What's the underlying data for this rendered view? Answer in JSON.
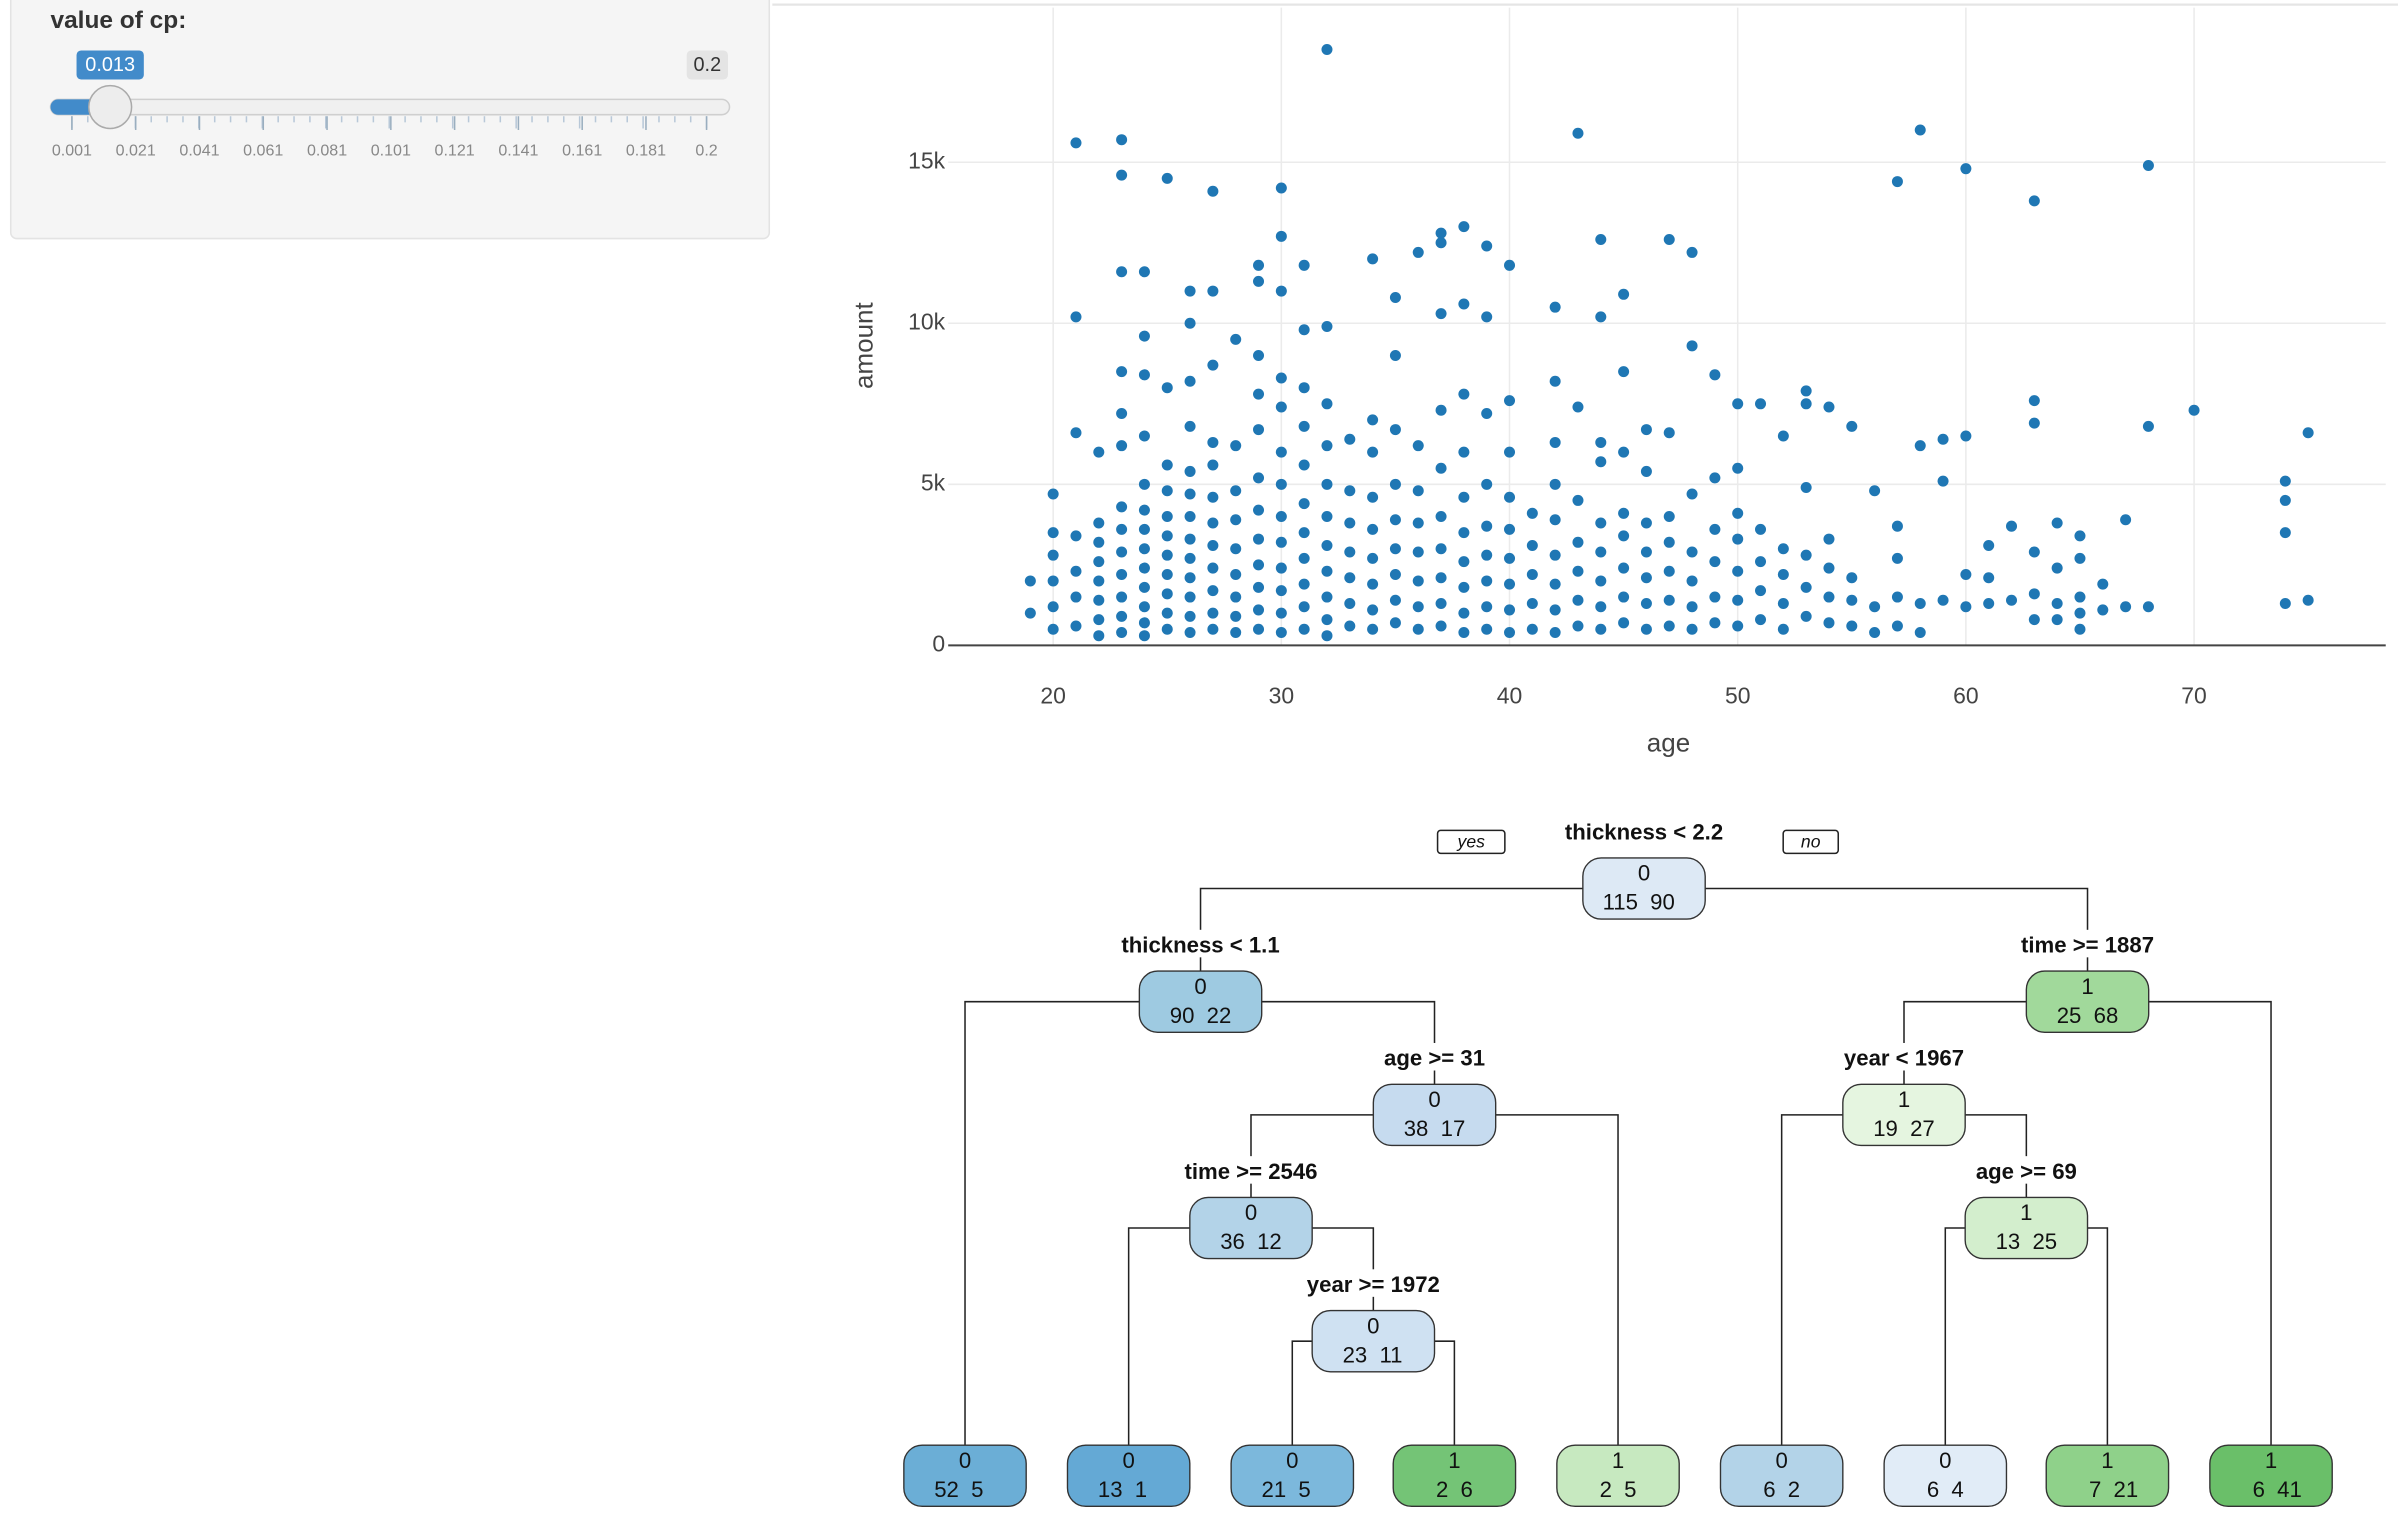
{
  "slider": {
    "label": "value of cp:",
    "value": 0.013,
    "max_badge": 0.2,
    "min": 0.001,
    "max": 0.2,
    "ticks": [
      0.001,
      0.021,
      0.041,
      0.061,
      0.081,
      0.101,
      0.121,
      0.141,
      0.161,
      0.181,
      0.2
    ]
  },
  "chart_data": {
    "type": "scatter",
    "x_label": "age",
    "y_label": "amount",
    "color": "#1f77b4",
    "grid": true,
    "xlim": [
      15.4,
      78.4
    ],
    "ylim": [
      0,
      19800
    ],
    "xticks": [
      20,
      30,
      40,
      50,
      60,
      70
    ],
    "yticks": [
      0,
      {
        "value": 5000,
        "label": "5k"
      },
      {
        "value": 10000,
        "label": "10k"
      },
      {
        "value": 15000,
        "label": "15k"
      }
    ],
    "x": [
      19,
      19,
      20,
      20,
      20,
      20,
      20,
      20,
      21,
      21,
      21,
      21,
      21,
      21,
      21,
      22,
      22,
      22,
      22,
      22,
      22,
      22,
      22,
      23,
      23,
      23,
      23,
      23,
      23,
      23,
      23,
      23,
      23,
      23,
      23,
      23,
      24,
      24,
      24,
      24,
      24,
      24,
      24,
      24,
      24,
      24,
      24,
      24,
      24,
      25,
      25,
      25,
      25,
      25,
      25,
      25,
      25,
      25,
      25,
      25,
      26,
      26,
      26,
      26,
      26,
      26,
      26,
      26,
      26,
      26,
      26,
      26,
      26,
      27,
      27,
      27,
      27,
      27,
      27,
      27,
      27,
      27,
      27,
      27,
      27,
      28,
      28,
      28,
      28,
      28,
      28,
      28,
      28,
      28,
      29,
      29,
      29,
      29,
      29,
      29,
      29,
      29,
      29,
      29,
      29,
      29,
      30,
      30,
      30,
      30,
      30,
      30,
      30,
      30,
      30,
      30,
      30,
      30,
      30,
      31,
      31,
      31,
      31,
      31,
      31,
      31,
      31,
      31,
      31,
      31,
      32,
      32,
      32,
      32,
      32,
      32,
      32,
      32,
      32,
      32,
      32,
      33,
      33,
      33,
      33,
      33,
      33,
      33,
      34,
      34,
      34,
      34,
      34,
      34,
      34,
      34,
      34,
      35,
      35,
      35,
      35,
      35,
      35,
      35,
      35,
      35,
      36,
      36,
      36,
      36,
      36,
      36,
      36,
      36,
      37,
      37,
      37,
      37,
      37,
      37,
      37,
      37,
      37,
      37,
      38,
      38,
      38,
      38,
      38,
      38,
      38,
      38,
      38,
      38,
      39,
      39,
      39,
      39,
      39,
      39,
      39,
      39,
      39,
      40,
      40,
      40,
      40,
      40,
      40,
      40,
      40,
      40,
      41,
      41,
      41,
      41,
      41,
      42,
      42,
      42,
      42,
      42,
      42,
      42,
      42,
      42,
      43,
      43,
      43,
      43,
      43,
      43,
      43,
      44,
      44,
      44,
      44,
      44,
      44,
      44,
      44,
      44,
      45,
      45,
      45,
      45,
      45,
      45,
      45,
      45,
      46,
      46,
      46,
      46,
      46,
      46,
      46,
      47,
      47,
      47,
      47,
      47,
      47,
      47,
      48,
      48,
      48,
      48,
      48,
      48,
      48,
      49,
      49,
      49,
      49,
      49,
      49,
      50,
      50,
      50,
      50,
      50,
      50,
      50,
      51,
      51,
      51,
      51,
      51,
      52,
      52,
      52,
      52,
      52,
      53,
      53,
      53,
      53,
      53,
      53,
      54,
      54,
      54,
      54,
      54,
      55,
      55,
      55,
      55,
      56,
      56,
      56,
      57,
      57,
      57,
      57,
      57,
      58,
      58,
      58,
      58,
      59,
      59,
      59,
      60,
      60,
      60,
      60,
      61,
      61,
      61,
      62,
      62,
      63,
      63,
      63,
      63,
      63,
      63,
      64,
      64,
      64,
      64,
      65,
      65,
      65,
      65,
      65,
      66,
      66,
      67,
      67,
      68,
      68,
      68,
      70,
      74,
      74,
      74,
      74,
      75,
      75
    ],
    "values": [
      1000,
      2000,
      500,
      1200,
      2000,
      2800,
      3500,
      4700,
      600,
      1500,
      2300,
      3400,
      6600,
      10200,
      15600,
      300,
      800,
      1400,
      2000,
      2600,
      3200,
      3800,
      6000,
      400,
      900,
      1500,
      2200,
      2900,
      3600,
      4300,
      6200,
      7200,
      8500,
      11600,
      14600,
      15700,
      300,
      700,
      1200,
      1800,
      2400,
      3000,
      3600,
      4200,
      5000,
      6500,
      8400,
      9600,
      11600,
      500,
      1000,
      1600,
      2200,
      2800,
      3400,
      4000,
      4800,
      5600,
      8000,
      14500,
      400,
      900,
      1500,
      2100,
      2700,
      3300,
      4000,
      4700,
      5400,
      6800,
      8200,
      10000,
      11000,
      500,
      1000,
      1700,
      2400,
      3100,
      3800,
      4600,
      5600,
      6300,
      8700,
      11000,
      14100,
      400,
      900,
      1500,
      2200,
      3000,
      3900,
      4800,
      6200,
      9500,
      500,
      1100,
      1800,
      2500,
      3300,
      4200,
      5200,
      6700,
      7800,
      9000,
      11300,
      11800,
      400,
      1000,
      1700,
      2400,
      3200,
      4000,
      5000,
      6000,
      7400,
      8300,
      11000,
      12700,
      14200,
      500,
      1200,
      1900,
      2700,
      3500,
      4400,
      5600,
      6800,
      8000,
      9800,
      11800,
      300,
      800,
      1500,
      2300,
      3100,
      4000,
      5000,
      6200,
      7500,
      9900,
      18500,
      600,
      1300,
      2100,
      2900,
      3800,
      4800,
      6400,
      500,
      1100,
      1900,
      2700,
      3600,
      4600,
      6000,
      7000,
      12000,
      700,
      1400,
      2200,
      3000,
      3900,
      5000,
      6700,
      9000,
      10800,
      500,
      1200,
      2000,
      2900,
      3800,
      4800,
      6200,
      12200,
      600,
      1300,
      2100,
      3000,
      4000,
      5500,
      7300,
      10300,
      12500,
      12800,
      400,
      1000,
      1800,
      2600,
      3500,
      4600,
      6000,
      7800,
      10600,
      13000,
      500,
      1200,
      2000,
      2800,
      3700,
      5000,
      7200,
      10200,
      12400,
      400,
      1100,
      1900,
      2700,
      3600,
      4600,
      6000,
      7600,
      11800,
      500,
      1300,
      2200,
      3100,
      4100,
      400,
      1100,
      1900,
      2800,
      3900,
      5000,
      6300,
      8200,
      10500,
      600,
      1400,
      2300,
      3200,
      4500,
      7400,
      15900,
      500,
      1200,
      2000,
      2900,
      3800,
      5700,
      6300,
      10200,
      12600,
      700,
      1500,
      2400,
      3400,
      4100,
      6000,
      8500,
      10900,
      500,
      1300,
      2100,
      2900,
      3800,
      5400,
      6700,
      600,
      1400,
      2300,
      3200,
      4000,
      6600,
      12600,
      500,
      1200,
      2000,
      2900,
      4700,
      9300,
      12200,
      700,
      1500,
      2600,
      3600,
      5200,
      8400,
      600,
      1400,
      2300,
      3300,
      4100,
      5500,
      7500,
      800,
      1700,
      2600,
      3600,
      7500,
      500,
      1300,
      2200,
      3000,
      6500,
      900,
      1800,
      2800,
      4900,
      7500,
      7900,
      700,
      1500,
      2400,
      3300,
      7400,
      600,
      1400,
      2100,
      6800,
      400,
      1200,
      4800,
      600,
      1500,
      2700,
      3700,
      14400,
      400,
      1300,
      6200,
      16000,
      1400,
      5100,
      6400,
      1200,
      2200,
      6500,
      14800,
      1300,
      2100,
      3100,
      1400,
      3700,
      800,
      1600,
      2900,
      6900,
      7600,
      13800,
      800,
      1300,
      2400,
      3800,
      500,
      1000,
      1500,
      2700,
      3400,
      1100,
      1900,
      1200,
      3900,
      1200,
      6800,
      14900,
      7300,
      1300,
      3500,
      4500,
      5100,
      1400,
      6600
    ]
  },
  "tree": {
    "yes": "yes",
    "no": "no",
    "nodes": [
      {
        "split": "thickness < 2.2",
        "class": "0",
        "counts": [
          115,
          90
        ],
        "color": "#dde9f5"
      },
      {
        "split": "thickness < 1.1",
        "class": "0",
        "counts": [
          90,
          22
        ],
        "color": "#9ecae1"
      },
      {
        "split": "time >= 1887",
        "class": "1",
        "counts": [
          25,
          68
        ],
        "color": "#a1d99b"
      },
      {
        "split": "age >= 31",
        "class": "0",
        "counts": [
          38,
          17
        ],
        "color": "#c6dbef"
      },
      {
        "split": "year < 1967",
        "class": "1",
        "counts": [
          19,
          27
        ],
        "color": "#e5f5e0"
      },
      {
        "split": "time >= 2546",
        "class": "0",
        "counts": [
          36,
          12
        ],
        "color": "#b3d3e8"
      },
      {
        "split": "age >= 69",
        "class": "1",
        "counts": [
          13,
          25
        ],
        "color": "#d3eecd"
      },
      {
        "split": "year >= 1972",
        "class": "0",
        "counts": [
          23,
          11
        ],
        "color": "#cfe1f2"
      },
      {
        "class": "0",
        "counts": [
          52,
          5
        ],
        "color": "#6baed6"
      },
      {
        "class": "0",
        "counts": [
          13,
          1
        ],
        "color": "#64a9d5"
      },
      {
        "class": "0",
        "counts": [
          21,
          5
        ],
        "color": "#7cb8dc"
      },
      {
        "class": "1",
        "counts": [
          2,
          6
        ],
        "color": "#74c476"
      },
      {
        "class": "1",
        "counts": [
          2,
          5
        ],
        "color": "#c7e9c0"
      },
      {
        "class": "0",
        "counts": [
          6,
          2
        ],
        "color": "#b3d3e8"
      },
      {
        "class": "0",
        "counts": [
          6,
          4
        ],
        "color": "#e1ecf7"
      },
      {
        "class": "1",
        "counts": [
          7,
          21
        ],
        "color": "#8fd18a"
      },
      {
        "class": "1",
        "counts": [
          6,
          41
        ],
        "color": "#6abf69"
      }
    ]
  }
}
